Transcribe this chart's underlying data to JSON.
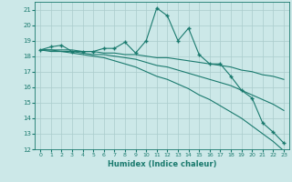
{
  "xlabel": "Humidex (Indice chaleur)",
  "background_color": "#cce8e8",
  "line_color": "#1a7a6e",
  "grid_color": "#aacccc",
  "x_data": [
    0,
    1,
    2,
    3,
    4,
    5,
    6,
    7,
    8,
    9,
    10,
    11,
    12,
    13,
    14,
    15,
    16,
    17,
    18,
    19,
    20,
    21,
    22,
    23
  ],
  "series1": [
    18.4,
    18.6,
    18.7,
    18.3,
    18.3,
    18.3,
    18.5,
    18.5,
    18.9,
    18.2,
    19.0,
    21.1,
    20.6,
    19.0,
    19.8,
    18.1,
    17.5,
    17.5,
    16.7,
    15.8,
    15.3,
    13.7,
    13.1,
    12.4
  ],
  "series2": [
    18.4,
    18.4,
    18.4,
    18.4,
    18.3,
    18.3,
    18.2,
    18.2,
    18.1,
    18.1,
    18.0,
    17.9,
    17.9,
    17.8,
    17.7,
    17.6,
    17.5,
    17.4,
    17.3,
    17.1,
    17.0,
    16.8,
    16.7,
    16.5
  ],
  "series3": [
    18.4,
    18.4,
    18.3,
    18.3,
    18.2,
    18.1,
    18.1,
    18.0,
    17.9,
    17.8,
    17.6,
    17.4,
    17.3,
    17.1,
    16.9,
    16.7,
    16.5,
    16.3,
    16.1,
    15.8,
    15.5,
    15.2,
    14.9,
    14.5
  ],
  "series4": [
    18.4,
    18.3,
    18.3,
    18.2,
    18.1,
    18.0,
    17.9,
    17.7,
    17.5,
    17.3,
    17.0,
    16.7,
    16.5,
    16.2,
    15.9,
    15.5,
    15.2,
    14.8,
    14.4,
    14.0,
    13.5,
    13.0,
    12.5,
    11.9
  ],
  "ylim": [
    12,
    21.5
  ],
  "yticks": [
    12,
    13,
    14,
    15,
    16,
    17,
    18,
    19,
    20,
    21
  ],
  "xticks": [
    0,
    1,
    2,
    3,
    4,
    5,
    6,
    7,
    8,
    9,
    10,
    11,
    12,
    13,
    14,
    15,
    16,
    17,
    18,
    19,
    20,
    21,
    22,
    23
  ],
  "marker": "+",
  "marker_size": 3,
  "line_width": 0.8
}
